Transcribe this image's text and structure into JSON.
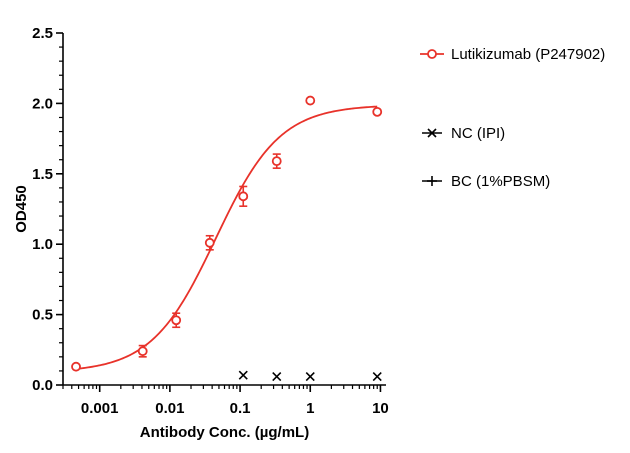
{
  "chart_data": {
    "type": "scatter",
    "xscale": "log",
    "xlabel": "Antibody Conc. (µg/mL)",
    "ylabel": "OD450",
    "xlim": [
      0.0003,
      12
    ],
    "ylim": [
      0,
      2.5
    ],
    "x_ticks": [
      {
        "value": 0.001,
        "label": "0.001"
      },
      {
        "value": 0.01,
        "label": "0.01"
      },
      {
        "value": 0.1,
        "label": "0.1"
      },
      {
        "value": 1,
        "label": "1"
      },
      {
        "value": 10,
        "label": "10"
      }
    ],
    "y_ticks": [
      {
        "value": 0,
        "label": "0.0"
      },
      {
        "value": 0.5,
        "label": "0.5"
      },
      {
        "value": 1.0,
        "label": "1.0"
      },
      {
        "value": 1.5,
        "label": "1.5"
      },
      {
        "value": 2.0,
        "label": "2.0"
      },
      {
        "value": 2.5,
        "label": "2.5"
      }
    ],
    "legend_position": "right",
    "grid": false,
    "series": [
      {
        "name": "Lutikizumab (P247902)",
        "color": "#e8322a",
        "marker": "open-circle",
        "fit": "sigmoidal-4pl",
        "fit_params": {
          "bottom": 0.09,
          "top": 1.99,
          "ec50": 0.045,
          "hill": 0.95
        },
        "points": [
          {
            "x": 0.00046,
            "y": 0.13,
            "err": 0.0
          },
          {
            "x": 0.0041,
            "y": 0.24,
            "err": 0.04
          },
          {
            "x": 0.0123,
            "y": 0.46,
            "err": 0.05
          },
          {
            "x": 0.037,
            "y": 1.01,
            "err": 0.05
          },
          {
            "x": 0.111,
            "y": 1.34,
            "err": 0.07
          },
          {
            "x": 0.333,
            "y": 1.59,
            "err": 0.05
          },
          {
            "x": 1.0,
            "y": 2.02,
            "err": 0.0
          },
          {
            "x": 9.0,
            "y": 1.94,
            "err": 0.0
          }
        ]
      },
      {
        "name": "NC (IPI)",
        "color": "#000000",
        "marker": "x",
        "points": [
          {
            "x": 0.111,
            "y": 0.07
          },
          {
            "x": 0.333,
            "y": 0.06
          },
          {
            "x": 1.0,
            "y": 0.06
          },
          {
            "x": 9.0,
            "y": 0.06
          }
        ]
      },
      {
        "name": "BC (1%PBSM)",
        "color": "#000000",
        "marker": "plus",
        "points": []
      }
    ]
  }
}
